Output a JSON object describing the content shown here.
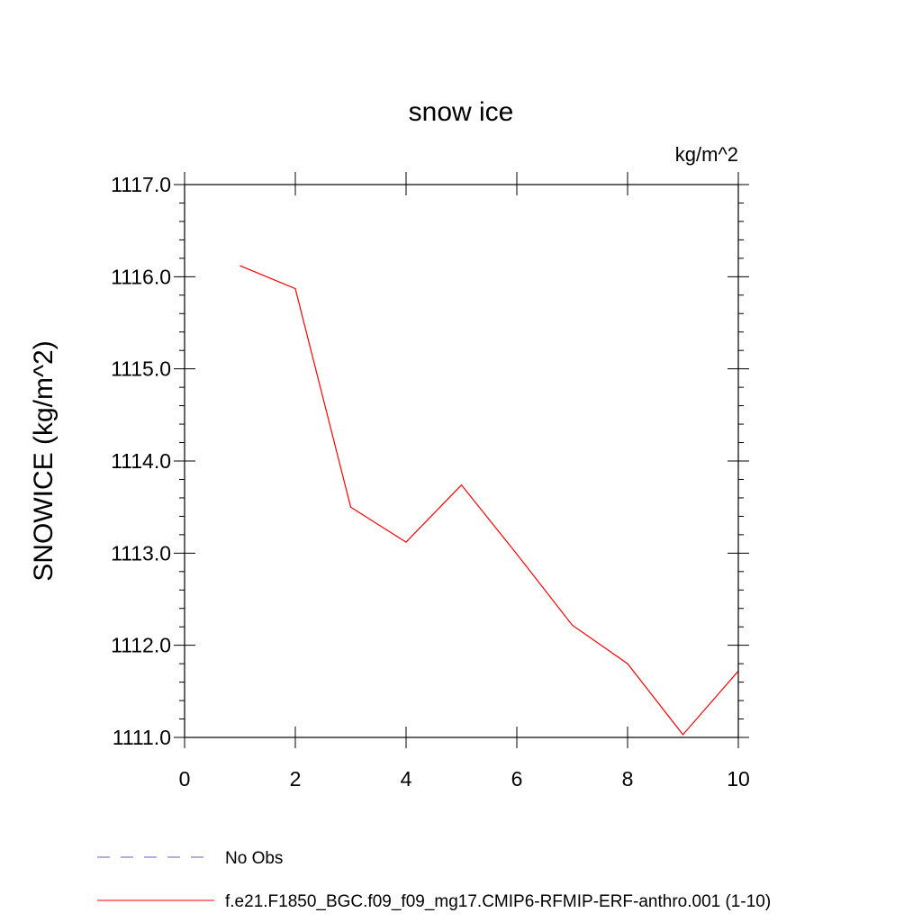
{
  "chart_data": {
    "type": "line",
    "title": "snow ice",
    "units": "kg/m^2",
    "ylabel": "SNOWICE  (kg/m^2)",
    "xlabel": "",
    "xlim": [
      0,
      10
    ],
    "ylim": [
      1111.0,
      1117.0
    ],
    "x_ticks": [
      "0",
      "2",
      "4",
      "6",
      "8",
      "10"
    ],
    "y_ticks": [
      "1111.0",
      "1112.0",
      "1113.0",
      "1114.0",
      "1115.0",
      "1116.0",
      "1117.0"
    ],
    "grid": false,
    "legend_position": "bottom",
    "series": [
      {
        "name": "f.e21.F1850_BGC.f09_f09_mg17.CMIP6-RFMIP-ERF-anthro.001 (1-10)",
        "color": "#ff0000",
        "style": "solid",
        "x": [
          1,
          2,
          3,
          4,
          5,
          6,
          7,
          8,
          9,
          10
        ],
        "y": [
          1116.12,
          1115.87,
          1113.5,
          1113.12,
          1113.74,
          1112.99,
          1112.22,
          1111.8,
          1111.03,
          1111.72
        ]
      }
    ],
    "legend": [
      {
        "label": "No Obs",
        "color": "#6a5acd",
        "style": "dashed"
      },
      {
        "label": "f.e21.F1850_BGC.f09_f09_mg17.CMIP6-RFMIP-ERF-anthro.001 (1-10)",
        "color": "#ff0000",
        "style": "solid"
      }
    ]
  }
}
